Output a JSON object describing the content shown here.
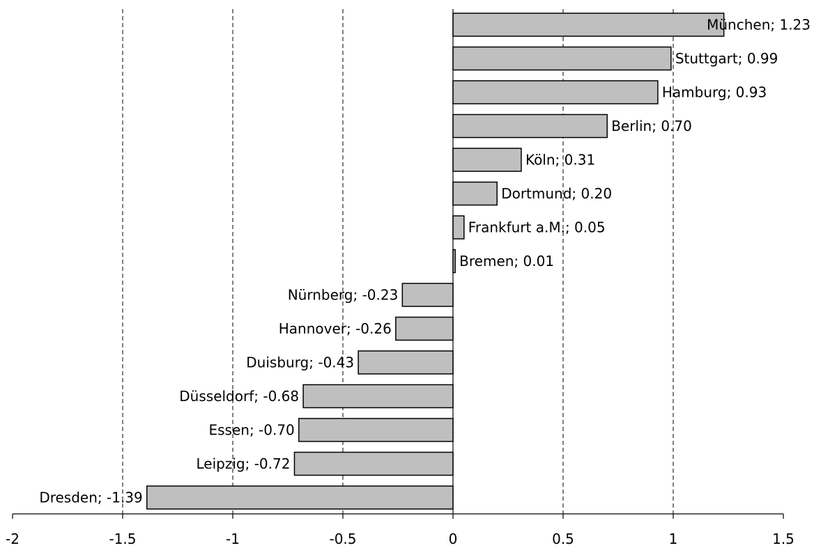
{
  "chart_data": {
    "type": "bar",
    "orientation": "horizontal",
    "title": "",
    "xlabel": "",
    "ylabel": "",
    "xlim": [
      -2,
      1.5
    ],
    "xticks": [
      "-2",
      "-1.5",
      "-1",
      "-0.5",
      "0",
      "0.5",
      "1",
      "1.5"
    ],
    "grid": "vertical dashed lines",
    "bar_color": "#bfbfbf",
    "bars": [
      {
        "label": "München; 1.23",
        "category": "München",
        "value": 1.23
      },
      {
        "label": "Stuttgart; 0.99",
        "category": "Stuttgart",
        "value": 0.99
      },
      {
        "label": "Hamburg; 0.93",
        "category": "Hamburg",
        "value": 0.93
      },
      {
        "label": "Berlin; 0.70",
        "category": "Berlin",
        "value": 0.7
      },
      {
        "label": "Köln; 0.31",
        "category": "Köln",
        "value": 0.31
      },
      {
        "label": "Dortmund; 0.20",
        "category": "Dortmund",
        "value": 0.2
      },
      {
        "label": "Frankfurt a.M.; 0.05",
        "category": "Frankfurt a.M.",
        "value": 0.05
      },
      {
        "label": "Bremen; 0.01",
        "category": "Bremen",
        "value": 0.01
      },
      {
        "label": "Nürnberg; -0.23",
        "category": "Nürnberg",
        "value": -0.23
      },
      {
        "label": "Hannover; -0.26",
        "category": "Hannover",
        "value": -0.26
      },
      {
        "label": "Duisburg; -0.43",
        "category": "Duisburg",
        "value": -0.43
      },
      {
        "label": "Düsseldorf; -0.68",
        "category": "Düsseldorf",
        "value": -0.68
      },
      {
        "label": "Essen; -0.70",
        "category": "Essen",
        "value": -0.7
      },
      {
        "label": "Leipzig; -0.72",
        "category": "Leipzig",
        "value": -0.72
      },
      {
        "label": "Dresden; -1.39",
        "category": "Dresden",
        "value": -1.39
      }
    ]
  }
}
